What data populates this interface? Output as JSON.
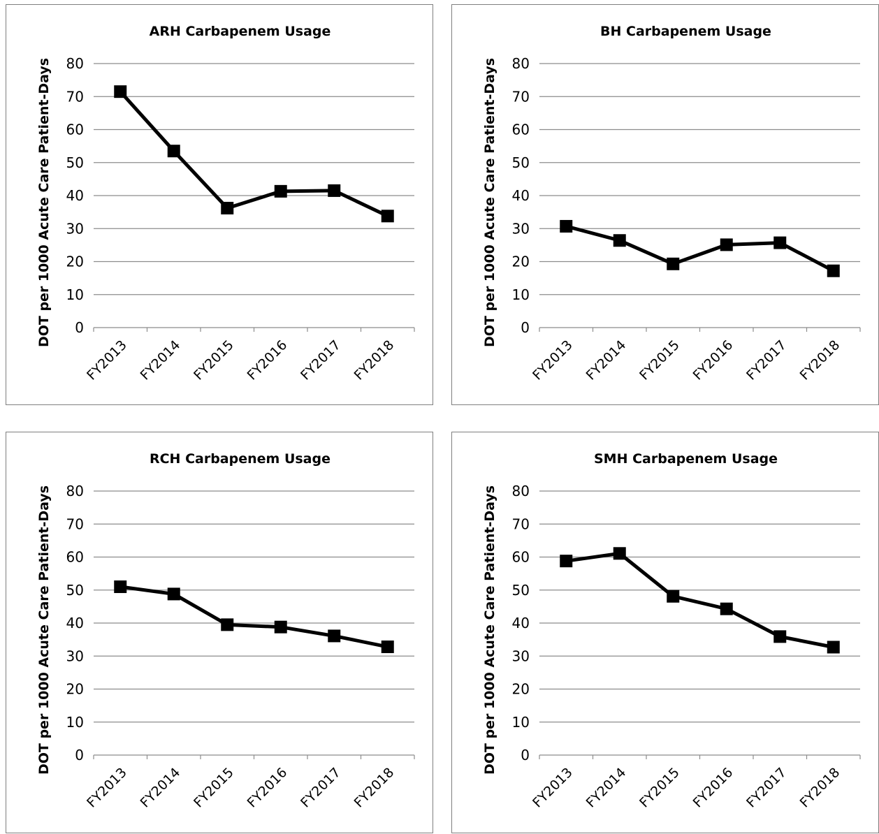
{
  "chart_data": [
    {
      "type": "line",
      "title": "ARH Carbapenem Usage",
      "ylabel": "DOT per 1000 Acute Care Patient-Days",
      "xlabel": "",
      "categories": [
        "FY2013",
        "FY2014",
        "FY2015",
        "FY2016",
        "FY2017",
        "FY2018"
      ],
      "values": [
        71.5,
        53.5,
        36.2,
        41.3,
        41.5,
        33.8
      ],
      "ylim": [
        0,
        80
      ],
      "yticks": [
        "0",
        "10",
        "20",
        "30",
        "40",
        "50",
        "60",
        "70",
        "80"
      ],
      "grid": true,
      "legend": "none",
      "marker": "square",
      "line_color": "#000000"
    },
    {
      "type": "line",
      "title": "BH Carbapenem Usage",
      "ylabel": "DOT per 1000 Acute Care Patient-Days",
      "xlabel": "",
      "categories": [
        "FY2013",
        "FY2014",
        "FY2015",
        "FY2016",
        "FY2017",
        "FY2018"
      ],
      "values": [
        30.7,
        26.4,
        19.3,
        25.1,
        25.7,
        17.2
      ],
      "ylim": [
        0,
        80
      ],
      "yticks": [
        "0",
        "10",
        "20",
        "30",
        "40",
        "50",
        "60",
        "70",
        "80"
      ],
      "grid": true,
      "legend": "none",
      "marker": "square",
      "line_color": "#000000"
    },
    {
      "type": "line",
      "title": "RCH Carbapenem Usage",
      "ylabel": "DOT per 1000 Acute Care Patient-Days",
      "xlabel": "",
      "categories": [
        "FY2013",
        "FY2014",
        "FY2015",
        "FY2016",
        "FY2017",
        "FY2018"
      ],
      "values": [
        51.0,
        48.8,
        39.5,
        38.8,
        36.1,
        32.8
      ],
      "ylim": [
        0,
        80
      ],
      "yticks": [
        "0",
        "10",
        "20",
        "30",
        "40",
        "50",
        "60",
        "70",
        "80"
      ],
      "grid": true,
      "legend": "none",
      "marker": "square",
      "line_color": "#000000"
    },
    {
      "type": "line",
      "title": "SMH Carbapenem Usage",
      "ylabel": "DOT per 1000 Acute Care Patient-Days",
      "xlabel": "",
      "categories": [
        "FY2013",
        "FY2014",
        "FY2015",
        "FY2016",
        "FY2017",
        "FY2018"
      ],
      "values": [
        58.8,
        61.1,
        48.1,
        44.3,
        35.9,
        32.7
      ],
      "ylim": [
        0,
        80
      ],
      "yticks": [
        "0",
        "10",
        "20",
        "30",
        "40",
        "50",
        "60",
        "70",
        "80"
      ],
      "grid": true,
      "legend": "none",
      "marker": "square",
      "line_color": "#000000"
    }
  ]
}
